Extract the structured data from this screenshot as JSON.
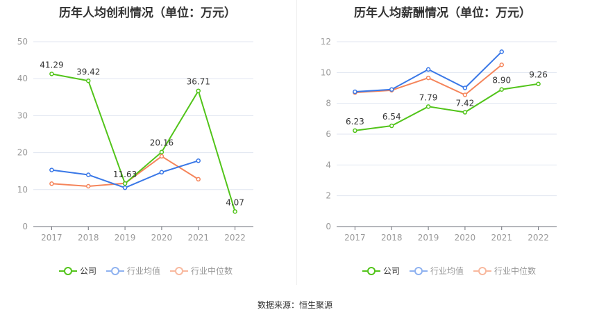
{
  "source": "数据来源：恒生聚源",
  "legend": [
    "公司",
    "行业均值",
    "行业中位数"
  ],
  "colors": {
    "company": "#52c41a",
    "avg": "#3a78e7",
    "median": "#f5845a",
    "avg_legend": "#8fb2f0",
    "median_legend": "#f8b89e"
  },
  "chart_data": [
    {
      "type": "line",
      "title": "历年人均创利情况（单位：万元）",
      "categories": [
        "2017",
        "2018",
        "2019",
        "2020",
        "2021",
        "2022"
      ],
      "ylim": [
        0,
        50
      ],
      "yticks": [
        0,
        10,
        20,
        30,
        40,
        50
      ],
      "grid": true,
      "legend_position": "bottom",
      "series": [
        {
          "name": "公司",
          "values": [
            41.29,
            39.42,
            11.63,
            20.16,
            36.71,
            4.07
          ],
          "labels": [
            "41.29",
            "39.42",
            "11.63",
            "20.16",
            "36.71",
            "4.07"
          ]
        },
        {
          "name": "行业均值",
          "values": [
            15.3,
            14.0,
            10.5,
            14.7,
            17.8,
            null
          ]
        },
        {
          "name": "行业中位数",
          "values": [
            11.6,
            10.9,
            11.7,
            19.0,
            12.8,
            null
          ]
        }
      ]
    },
    {
      "type": "line",
      "title": "历年人均薪酬情况（单位：万元）",
      "categories": [
        "2017",
        "2018",
        "2019",
        "2020",
        "2021",
        "2022"
      ],
      "ylim": [
        0,
        12
      ],
      "yticks": [
        0,
        2,
        4,
        6,
        8,
        10,
        12
      ],
      "grid": true,
      "legend_position": "bottom",
      "series": [
        {
          "name": "公司",
          "values": [
            6.23,
            6.54,
            7.79,
            7.42,
            8.9,
            9.26
          ],
          "labels": [
            "6.23",
            "6.54",
            "7.79",
            "7.42",
            "8.90",
            "9.26"
          ]
        },
        {
          "name": "行业均值",
          "values": [
            8.75,
            8.9,
            10.2,
            9.0,
            11.35,
            null
          ]
        },
        {
          "name": "行业中位数",
          "values": [
            8.7,
            8.85,
            9.65,
            8.55,
            10.5,
            null
          ]
        }
      ]
    }
  ]
}
